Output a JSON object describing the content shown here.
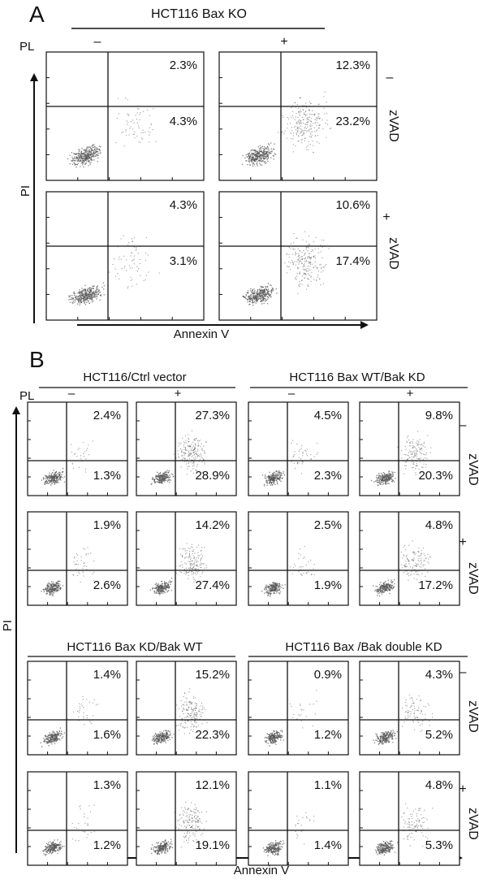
{
  "panel_a": {
    "letter": "A",
    "title": "HCT116 Bax KO",
    "pl_label": "PL",
    "pl_minus": "–",
    "pl_plus": "+",
    "y_axis_label": "PI",
    "x_axis_label": "Annexin V",
    "rows": [
      {
        "sign": "–",
        "label": "zVAD"
      },
      {
        "sign": "+",
        "label": "zVAD"
      }
    ],
    "plots": [
      {
        "upper": "2.3%",
        "lower": "4.3%",
        "apop": 0.15
      },
      {
        "upper": "12.3%",
        "lower": "23.2%",
        "apop": 0.55
      },
      {
        "upper": "4.3%",
        "lower": "3.1%",
        "apop": 0.15
      },
      {
        "upper": "10.6%",
        "lower": "17.4%",
        "apop": 0.5
      }
    ]
  },
  "panel_b": {
    "letter": "B",
    "pl_label": "PL",
    "y_axis_label": "PI",
    "x_axis_label": "Annexin V",
    "groups": [
      {
        "title": "HCT116/Ctrl vector",
        "minus": "–",
        "plus": "+"
      },
      {
        "title": "HCT116 Bax WT/Bak KD",
        "minus": "–",
        "plus": "+"
      },
      {
        "title": "HCT116 Bax KD/Bak WT"
      },
      {
        "title": "HCT116 Bax /Bak double KD"
      }
    ],
    "rows": [
      {
        "sign": "–",
        "label": "zVAD"
      },
      {
        "sign": "+",
        "label": "zVAD"
      },
      {
        "sign": "–",
        "label": "zVAD"
      },
      {
        "sign": "+",
        "label": "zVAD"
      }
    ],
    "plots": [
      {
        "upper": "2.4%",
        "lower": "1.3%",
        "apop": 0.1
      },
      {
        "upper": "27.3%",
        "lower": "28.9%",
        "apop": 0.7
      },
      {
        "upper": "4.5%",
        "lower": "2.3%",
        "apop": 0.15
      },
      {
        "upper": "9.8%",
        "lower": "20.3%",
        "apop": 0.5
      },
      {
        "upper": "1.9%",
        "lower": "2.6%",
        "apop": 0.15
      },
      {
        "upper": "14.2%",
        "lower": "27.4%",
        "apop": 0.6
      },
      {
        "upper": "2.5%",
        "lower": "1.9%",
        "apop": 0.12
      },
      {
        "upper": "4.8%",
        "lower": "17.2%",
        "apop": 0.45
      },
      {
        "upper": "1.4%",
        "lower": "1.6%",
        "apop": 0.12
      },
      {
        "upper": "15.2%",
        "lower": "22.3%",
        "apop": 0.6
      },
      {
        "upper": "0.9%",
        "lower": "1.2%",
        "apop": 0.08
      },
      {
        "upper": "4.3%",
        "lower": "5.2%",
        "apop": 0.3
      },
      {
        "upper": "1.3%",
        "lower": "1.2%",
        "apop": 0.1
      },
      {
        "upper": "12.1%",
        "lower": "19.1%",
        "apop": 0.55
      },
      {
        "upper": "1.1%",
        "lower": "1.4%",
        "apop": 0.08
      },
      {
        "upper": "4.8%",
        "lower": "5.3%",
        "apop": 0.35
      }
    ]
  }
}
